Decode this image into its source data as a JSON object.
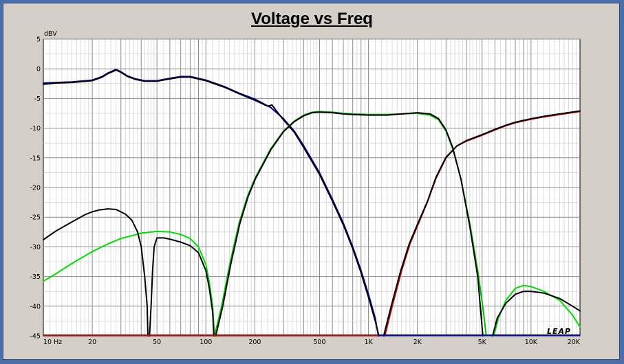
{
  "chart_data": {
    "type": "line",
    "title": "Voltage vs Freq",
    "ylabel": "dBV",
    "xscale": "log",
    "xlim": [
      10,
      20000
    ],
    "ylim": [
      -45,
      5
    ],
    "grid": true,
    "xticks": [
      {
        "v": 10,
        "label": "10 Hz"
      },
      {
        "v": 20,
        "label": "20"
      },
      {
        "v": 50,
        "label": "50"
      },
      {
        "v": 100,
        "label": "100"
      },
      {
        "v": 200,
        "label": "200"
      },
      {
        "v": 500,
        "label": "500"
      },
      {
        "v": 1000,
        "label": "1K"
      },
      {
        "v": 2000,
        "label": "2K"
      },
      {
        "v": 5000,
        "label": "5K"
      },
      {
        "v": 10000,
        "label": "10K"
      },
      {
        "v": 20000,
        "label": "20K"
      }
    ],
    "yticks": [
      5,
      0,
      -5,
      -10,
      -15,
      -20,
      -25,
      -30,
      -35,
      -40,
      -45
    ],
    "watermark": "LEAP",
    "series": [
      {
        "color": "#0000aa",
        "points": [
          [
            10,
            -2.4
          ],
          [
            12,
            -2.3
          ],
          [
            15,
            -2.2
          ],
          [
            20,
            -1.9
          ],
          [
            23,
            -1.3
          ],
          [
            25,
            -0.7
          ],
          [
            27,
            -0.3
          ],
          [
            28,
            -0.1
          ],
          [
            30,
            -0.5
          ],
          [
            33,
            -1.2
          ],
          [
            37,
            -1.7
          ],
          [
            42,
            -2.0
          ],
          [
            50,
            -2.0
          ],
          [
            60,
            -1.6
          ],
          [
            70,
            -1.3
          ],
          [
            80,
            -1.3
          ],
          [
            100,
            -1.9
          ],
          [
            130,
            -3.0
          ],
          [
            160,
            -4.1
          ],
          [
            200,
            -5.1
          ],
          [
            250,
            -6.5
          ],
          [
            300,
            -8.4
          ],
          [
            350,
            -10.5
          ],
          [
            400,
            -13.0
          ],
          [
            500,
            -17.5
          ],
          [
            600,
            -22.0
          ],
          [
            700,
            -26.0
          ],
          [
            800,
            -30.0
          ],
          [
            900,
            -34.0
          ],
          [
            1000,
            -38.0
          ],
          [
            1100,
            -42.0
          ],
          [
            1150,
            -45.0
          ]
        ]
      },
      {
        "color": "#000000",
        "points": [
          [
            10,
            -2.6
          ],
          [
            12,
            -2.4
          ],
          [
            15,
            -2.3
          ],
          [
            20,
            -2.0
          ],
          [
            23,
            -1.4
          ],
          [
            25,
            -0.8
          ],
          [
            27,
            -0.4
          ],
          [
            28,
            -0.2
          ],
          [
            30,
            -0.6
          ],
          [
            33,
            -1.3
          ],
          [
            37,
            -1.8
          ],
          [
            42,
            -2.1
          ],
          [
            50,
            -2.1
          ],
          [
            60,
            -1.7
          ],
          [
            70,
            -1.4
          ],
          [
            80,
            -1.4
          ],
          [
            100,
            -2.0
          ],
          [
            130,
            -3.1
          ],
          [
            160,
            -4.2
          ],
          [
            200,
            -5.3
          ],
          [
            240,
            -6.3
          ],
          [
            255,
            -6.1
          ],
          [
            270,
            -7.0
          ],
          [
            300,
            -8.6
          ],
          [
            350,
            -10.7
          ],
          [
            400,
            -13.3
          ],
          [
            500,
            -17.8
          ],
          [
            600,
            -22.3
          ],
          [
            700,
            -26.3
          ],
          [
            800,
            -30.3
          ],
          [
            900,
            -34.4
          ],
          [
            1000,
            -38.5
          ],
          [
            1100,
            -42.5
          ],
          [
            1160,
            -45.0
          ]
        ]
      },
      {
        "color": "#00c000",
        "points": [
          [
            113,
            -45
          ],
          [
            125,
            -40
          ],
          [
            140,
            -33
          ],
          [
            160,
            -26
          ],
          [
            180,
            -21.5
          ],
          [
            200,
            -18.5
          ],
          [
            250,
            -13.5
          ],
          [
            300,
            -10.5
          ],
          [
            350,
            -8.8
          ],
          [
            400,
            -7.8
          ],
          [
            450,
            -7.3
          ],
          [
            500,
            -7.2
          ],
          [
            600,
            -7.3
          ],
          [
            700,
            -7.5
          ],
          [
            800,
            -7.6
          ],
          [
            1000,
            -7.7
          ],
          [
            1300,
            -7.7
          ],
          [
            1600,
            -7.6
          ],
          [
            2000,
            -7.5
          ],
          [
            2400,
            -7.8
          ],
          [
            2700,
            -8.6
          ],
          [
            3000,
            -10.5
          ],
          [
            3300,
            -13.5
          ],
          [
            3700,
            -18.5
          ],
          [
            4200,
            -26.0
          ],
          [
            4700,
            -34.0
          ],
          [
            5100,
            -41.0
          ],
          [
            5300,
            -45.0
          ]
        ]
      },
      {
        "color": "#000000",
        "points": [
          [
            115,
            -45
          ],
          [
            127,
            -40
          ],
          [
            142,
            -33
          ],
          [
            162,
            -26
          ],
          [
            182,
            -21.5
          ],
          [
            202,
            -18.5
          ],
          [
            250,
            -13.7
          ],
          [
            300,
            -10.6
          ],
          [
            350,
            -8.9
          ],
          [
            400,
            -7.9
          ],
          [
            450,
            -7.4
          ],
          [
            500,
            -7.3
          ],
          [
            600,
            -7.4
          ],
          [
            700,
            -7.6
          ],
          [
            800,
            -7.7
          ],
          [
            1000,
            -7.8
          ],
          [
            1300,
            -7.8
          ],
          [
            1600,
            -7.6
          ],
          [
            2000,
            -7.4
          ],
          [
            2400,
            -7.6
          ],
          [
            2700,
            -8.4
          ],
          [
            3000,
            -10.3
          ],
          [
            3300,
            -13.3
          ],
          [
            3700,
            -18.5
          ],
          [
            4200,
            -26.5
          ],
          [
            4700,
            -35.0
          ],
          [
            5050,
            -45.0
          ]
        ]
      },
      {
        "color": "#cc0000",
        "points": [
          [
            1260,
            -45
          ],
          [
            1400,
            -40
          ],
          [
            1600,
            -34
          ],
          [
            1800,
            -29.5
          ],
          [
            2000,
            -26.5
          ],
          [
            2300,
            -22.5
          ],
          [
            2600,
            -18.5
          ],
          [
            3000,
            -15.0
          ],
          [
            3500,
            -13.0
          ],
          [
            4000,
            -12.2
          ],
          [
            5000,
            -11.2
          ],
          [
            6000,
            -10.3
          ],
          [
            7000,
            -9.6
          ],
          [
            8000,
            -9.1
          ],
          [
            10000,
            -8.5
          ],
          [
            12000,
            -8.1
          ],
          [
            15000,
            -7.7
          ],
          [
            20000,
            -7.2
          ]
        ]
      },
      {
        "color": "#000000",
        "points": [
          [
            1240,
            -45
          ],
          [
            1380,
            -40
          ],
          [
            1580,
            -34
          ],
          [
            1780,
            -29.5
          ],
          [
            1980,
            -26.5
          ],
          [
            2300,
            -22.4
          ],
          [
            2600,
            -18.3
          ],
          [
            3000,
            -14.9
          ],
          [
            3500,
            -13.0
          ],
          [
            4000,
            -12.1
          ],
          [
            5000,
            -11.1
          ],
          [
            6000,
            -10.2
          ],
          [
            7000,
            -9.5
          ],
          [
            8000,
            -9.0
          ],
          [
            10000,
            -8.4
          ],
          [
            12000,
            -8.0
          ],
          [
            15000,
            -7.6
          ],
          [
            20000,
            -7.1
          ]
        ]
      },
      {
        "color": "#00dd00",
        "points": [
          [
            10,
            -35.8
          ],
          [
            12,
            -34.5
          ],
          [
            15,
            -32.8
          ],
          [
            20,
            -30.8
          ],
          [
            25,
            -29.5
          ],
          [
            30,
            -28.6
          ],
          [
            40,
            -27.7
          ],
          [
            50,
            -27.4
          ],
          [
            60,
            -27.5
          ],
          [
            70,
            -27.9
          ],
          [
            80,
            -28.6
          ],
          [
            90,
            -30.0
          ],
          [
            100,
            -33.0
          ],
          [
            105,
            -36.0
          ],
          [
            110,
            -40.0
          ],
          [
            113,
            -45.0
          ]
        ]
      },
      {
        "color": "#00dd00",
        "points": [
          [
            5900,
            -45
          ],
          [
            6300,
            -42
          ],
          [
            7000,
            -39
          ],
          [
            8000,
            -37.0
          ],
          [
            9000,
            -36.5
          ],
          [
            10000,
            -36.7
          ],
          [
            12000,
            -37.5
          ],
          [
            15000,
            -39.0
          ],
          [
            18000,
            -41.5
          ],
          [
            20000,
            -43.5
          ]
        ]
      },
      {
        "color": "#000000",
        "points": [
          [
            10,
            -28.8
          ],
          [
            12,
            -27.3
          ],
          [
            15,
            -25.8
          ],
          [
            18,
            -24.6
          ],
          [
            20,
            -24.1
          ],
          [
            22,
            -23.8
          ],
          [
            25,
            -23.6
          ],
          [
            28,
            -23.7
          ],
          [
            32,
            -24.5
          ],
          [
            35,
            -25.5
          ],
          [
            38,
            -27.5
          ],
          [
            40,
            -30.0
          ],
          [
            42,
            -35.0
          ],
          [
            43.5,
            -40.0
          ],
          [
            44,
            -45.0
          ]
        ]
      },
      {
        "color": "#000000",
        "points": [
          [
            45,
            -45
          ],
          [
            46,
            -40
          ],
          [
            47,
            -34
          ],
          [
            48,
            -30
          ],
          [
            50,
            -28.5
          ],
          [
            55,
            -28.5
          ],
          [
            60,
            -28.7
          ],
          [
            70,
            -29.2
          ],
          [
            80,
            -29.8
          ],
          [
            90,
            -31.0
          ],
          [
            100,
            -34.0
          ],
          [
            105,
            -37.0
          ],
          [
            110,
            -41.0
          ],
          [
            112,
            -45.0
          ]
        ]
      },
      {
        "color": "#000000",
        "points": [
          [
            5800,
            -45
          ],
          [
            6200,
            -42
          ],
          [
            7000,
            -39.5
          ],
          [
            8000,
            -38.0
          ],
          [
            9000,
            -37.5
          ],
          [
            10000,
            -37.5
          ],
          [
            12000,
            -37.8
          ],
          [
            15000,
            -38.7
          ],
          [
            18000,
            -40.0
          ],
          [
            20000,
            -40.8
          ]
        ]
      }
    ]
  }
}
